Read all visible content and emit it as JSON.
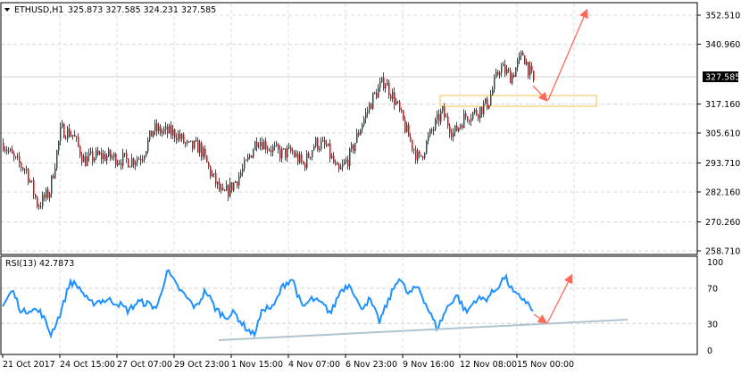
{
  "header": {
    "symbol": "ETHUSD,H1",
    "ohlc": "325.873 327.585 324.231 327.585"
  },
  "rsi_label": "RSI(13) 42.7873",
  "colors": {
    "up": "#2f4f4f",
    "down": "#ff0000",
    "rsi": "#1e90ff",
    "arrow": "#ff6a5a",
    "zone": "#f5d58a",
    "trend": "#b0c4ce"
  },
  "chart_data": [
    {
      "type": "candlestick",
      "title": "ETHUSD,H1",
      "y_ticks": [
        "352.510",
        "340.960",
        "317.160",
        "305.610",
        "293.710",
        "282.160",
        "270.260",
        "258.710"
      ],
      "ylim": [
        258.71,
        352.51
      ],
      "current_price": "327.585",
      "x_ticks": [
        "21 Oct 2017",
        "24 Oct 15:00",
        "27 Oct 07:00",
        "29 Oct 23:00",
        "1 Nov 15:00",
        "4 Nov 07:00",
        "6 Nov 23:00",
        "9 Nov 16:00",
        "12 Nov 08:00",
        "15 Nov 00:00"
      ],
      "grid": true,
      "approx_close_path": [
        301.7,
        294.6,
        291,
        276.8,
        282,
        307,
        305.3,
        294.6,
        296.4,
        296.4,
        295.3,
        294.6,
        296.4,
        307,
        306,
        305.3,
        300,
        300,
        289.3,
        280.4,
        285.7,
        292.8,
        303.5,
        300,
        297.4,
        298,
        292.8,
        301.7,
        300,
        289.3,
        296.4,
        308.8,
        319.5,
        326.6,
        317.7,
        305.3,
        294.6,
        305.3,
        314,
        305.3,
        312.4,
        314,
        317.7,
        331.9,
        328,
        337.2,
        324.8
      ]
    },
    {
      "type": "line",
      "title": "RSI(13) 42.7873",
      "y_ticks": [
        "100",
        "70",
        "30",
        "0"
      ],
      "ylim": [
        0,
        100
      ],
      "approx_values": [
        49.5,
        67.7,
        42,
        47,
        42,
        18,
        42,
        77.8,
        70,
        52.5,
        55.6,
        56.6,
        52.5,
        44.4,
        54.5,
        52.5,
        47.5,
        90,
        72.7,
        59.6,
        47.5,
        67.7,
        47.5,
        37.4,
        42,
        27,
        17,
        47.5,
        47.5,
        72.7,
        81,
        47.5,
        57.6,
        52.5,
        42,
        67.7,
        75,
        47,
        57,
        32,
        57,
        83,
        62.6,
        72.7,
        47.5,
        24,
        47.5,
        62.6,
        42,
        57.6,
        57.6,
        67.7,
        83,
        62.6,
        57.6,
        42.79
      ]
    }
  ]
}
